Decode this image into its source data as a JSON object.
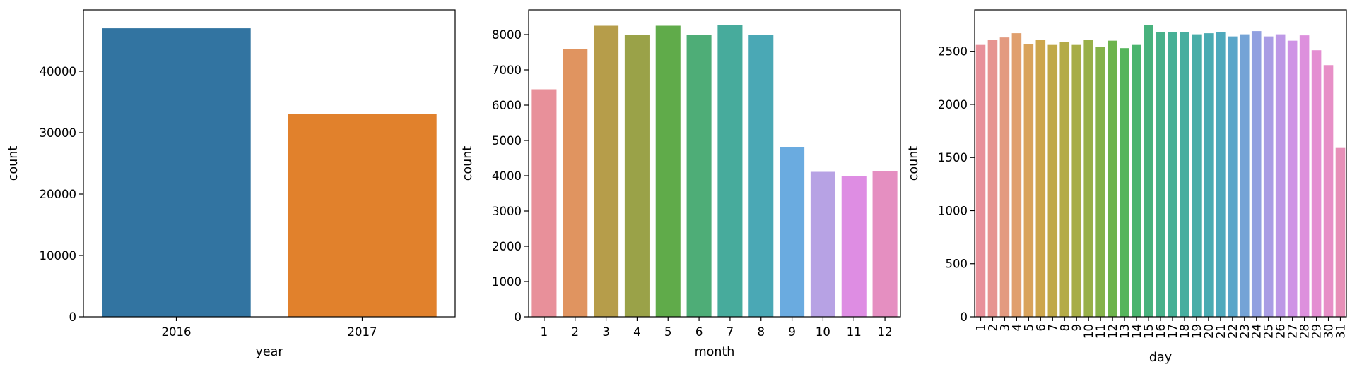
{
  "chart_data": [
    {
      "type": "bar",
      "xlabel": "year",
      "ylabel": "count",
      "categories": [
        "2016",
        "2017"
      ],
      "values": [
        47000,
        33000
      ],
      "ylim": [
        0,
        50000
      ],
      "yticks": [
        0,
        10000,
        20000,
        30000,
        40000
      ],
      "grid": false,
      "colors": [
        "#3274a1",
        "#e1812c"
      ]
    },
    {
      "type": "bar",
      "xlabel": "month",
      "ylabel": "count",
      "categories": [
        "1",
        "2",
        "3",
        "4",
        "5",
        "6",
        "7",
        "8",
        "9",
        "10",
        "11",
        "12"
      ],
      "values": [
        6450,
        7600,
        8250,
        8000,
        8250,
        8000,
        8270,
        8000,
        4820,
        4110,
        3990,
        4140
      ],
      "ylim": [
        0,
        8700
      ],
      "yticks": [
        0,
        1000,
        2000,
        3000,
        4000,
        5000,
        6000,
        7000,
        8000
      ],
      "grid": false,
      "colors": [
        "#e8909a",
        "#e09460",
        "#b69d4a",
        "#9aa248",
        "#60ab4a",
        "#4ead77",
        "#47ab9c",
        "#4aa8b5",
        "#6aabe0",
        "#b7a2e4",
        "#de8de3",
        "#e58fc1"
      ]
    },
    {
      "type": "bar",
      "xlabel": "day",
      "ylabel": "count",
      "categories": [
        "1",
        "2",
        "3",
        "4",
        "5",
        "6",
        "7",
        "8",
        "9",
        "10",
        "11",
        "12",
        "13",
        "14",
        "15",
        "16",
        "17",
        "18",
        "19",
        "20",
        "21",
        "22",
        "23",
        "24",
        "25",
        "26",
        "27",
        "28",
        "29",
        "30",
        "31"
      ],
      "values": [
        2560,
        2610,
        2630,
        2670,
        2570,
        2610,
        2560,
        2590,
        2560,
        2610,
        2540,
        2600,
        2530,
        2560,
        2750,
        2680,
        2680,
        2680,
        2660,
        2670,
        2680,
        2640,
        2660,
        2690,
        2640,
        2660,
        2600,
        2650,
        2510,
        2370,
        1590
      ],
      "ylim": [
        0,
        2890
      ],
      "yticks": [
        0,
        500,
        1000,
        1500,
        2000,
        2500
      ],
      "grid": false,
      "colors": [
        "#e8909a",
        "#e69490",
        "#e39a80",
        "#e09f6d",
        "#d9a35b",
        "#cda64c",
        "#c0a948",
        "#b4ab47",
        "#a7ad47",
        "#98b048",
        "#85b24a",
        "#6db44c",
        "#55b55b",
        "#4ab46e",
        "#48b27d",
        "#48b18a",
        "#47b096",
        "#47ae9f",
        "#48ada8",
        "#4aabb2",
        "#4ea9bc",
        "#5aa6c9",
        "#74a3d6",
        "#91a0e0",
        "#a99de4",
        "#bd98e6",
        "#cf93e5",
        "#dd90dd",
        "#e48ed2",
        "#e78fc7",
        "#e790b8"
      ]
    }
  ]
}
